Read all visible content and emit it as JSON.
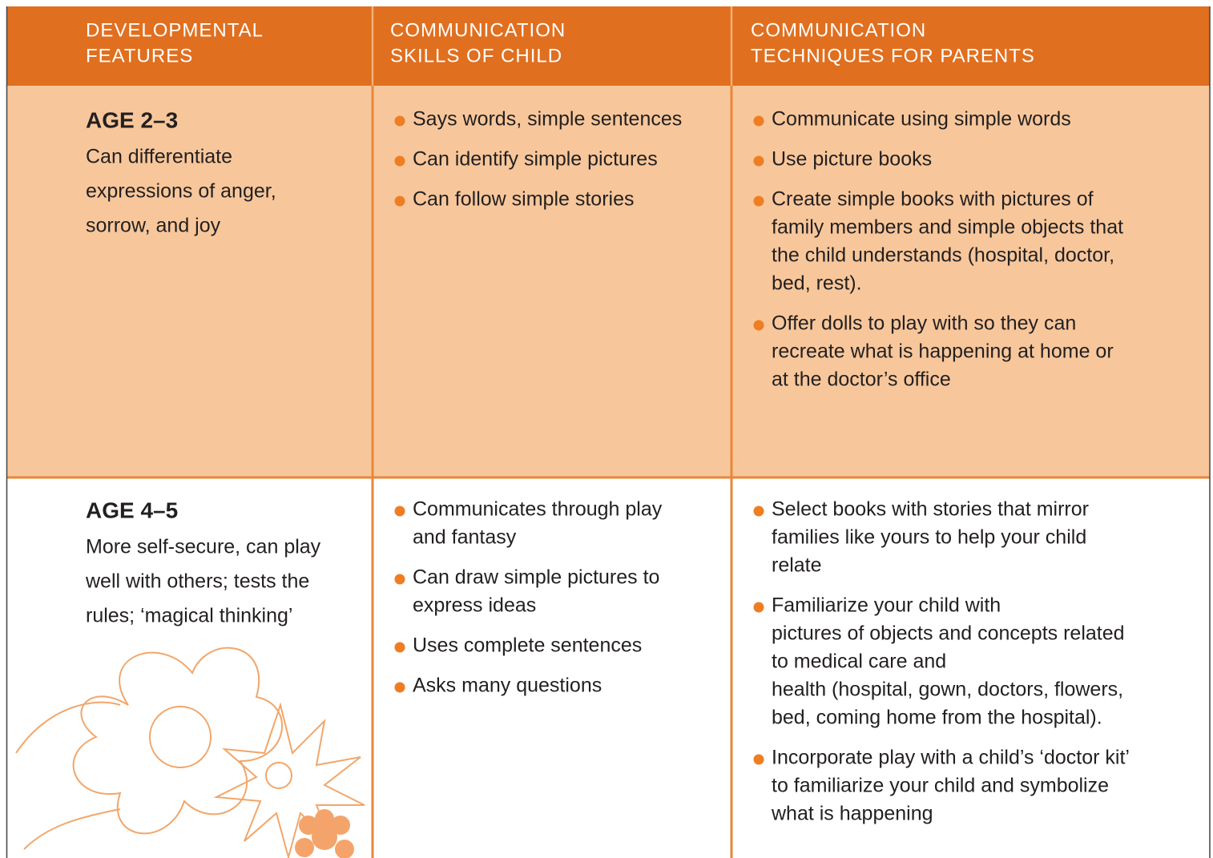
{
  "table": {
    "header": [
      [
        "DEVELOPMENTAL",
        "FEATURES"
      ],
      [
        "COMMUNICATION",
        "SKILLS OF CHILD"
      ],
      [
        "COMMUNICATION",
        "TECHNIQUES FOR PARENTS"
      ]
    ],
    "rows": [
      {
        "age": "AGE 2–3",
        "features": [
          "Can differentiate",
          "expressions of anger,",
          "sorrow, and joy"
        ],
        "skills": [
          [
            "Says words, simple sentences"
          ],
          [
            "Can identify simple pictures"
          ],
          [
            "Can follow simple stories"
          ]
        ],
        "techniques": [
          [
            "Communicate using simple words"
          ],
          [
            "Use picture books"
          ],
          [
            "Create simple books with pictures of",
            "family members and simple objects that",
            "the child understands (hospital, doctor,",
            "bed, rest)."
          ],
          [
            "Offer dolls to play with so they can",
            "recreate what is happening at home or",
            "at the doctor’s office"
          ]
        ]
      },
      {
        "age": "AGE 4–5",
        "features": [
          "More self-secure, can play",
          "well with others; tests the",
          "rules; ‘magical thinking’"
        ],
        "skills": [
          [
            "Communicates through play",
            "and fantasy"
          ],
          [
            "Can draw simple pictures to",
            "express ideas"
          ],
          [
            "Uses complete sentences"
          ],
          [
            "Asks many questions"
          ]
        ],
        "techniques": [
          [
            "Select books with stories that mirror",
            "families like yours to help your child",
            "relate"
          ],
          [
            "Familiarize your child with",
            "pictures of objects and concepts related",
            "to medical care and",
            "health (hospital, gown, doctors, flowers,",
            "bed, coming home from the hospital)."
          ],
          [
            "Incorporate play with a child’s ‘doctor kit’",
            "to familiarize your child and symbolize",
            "what is happening"
          ]
        ]
      }
    ]
  }
}
